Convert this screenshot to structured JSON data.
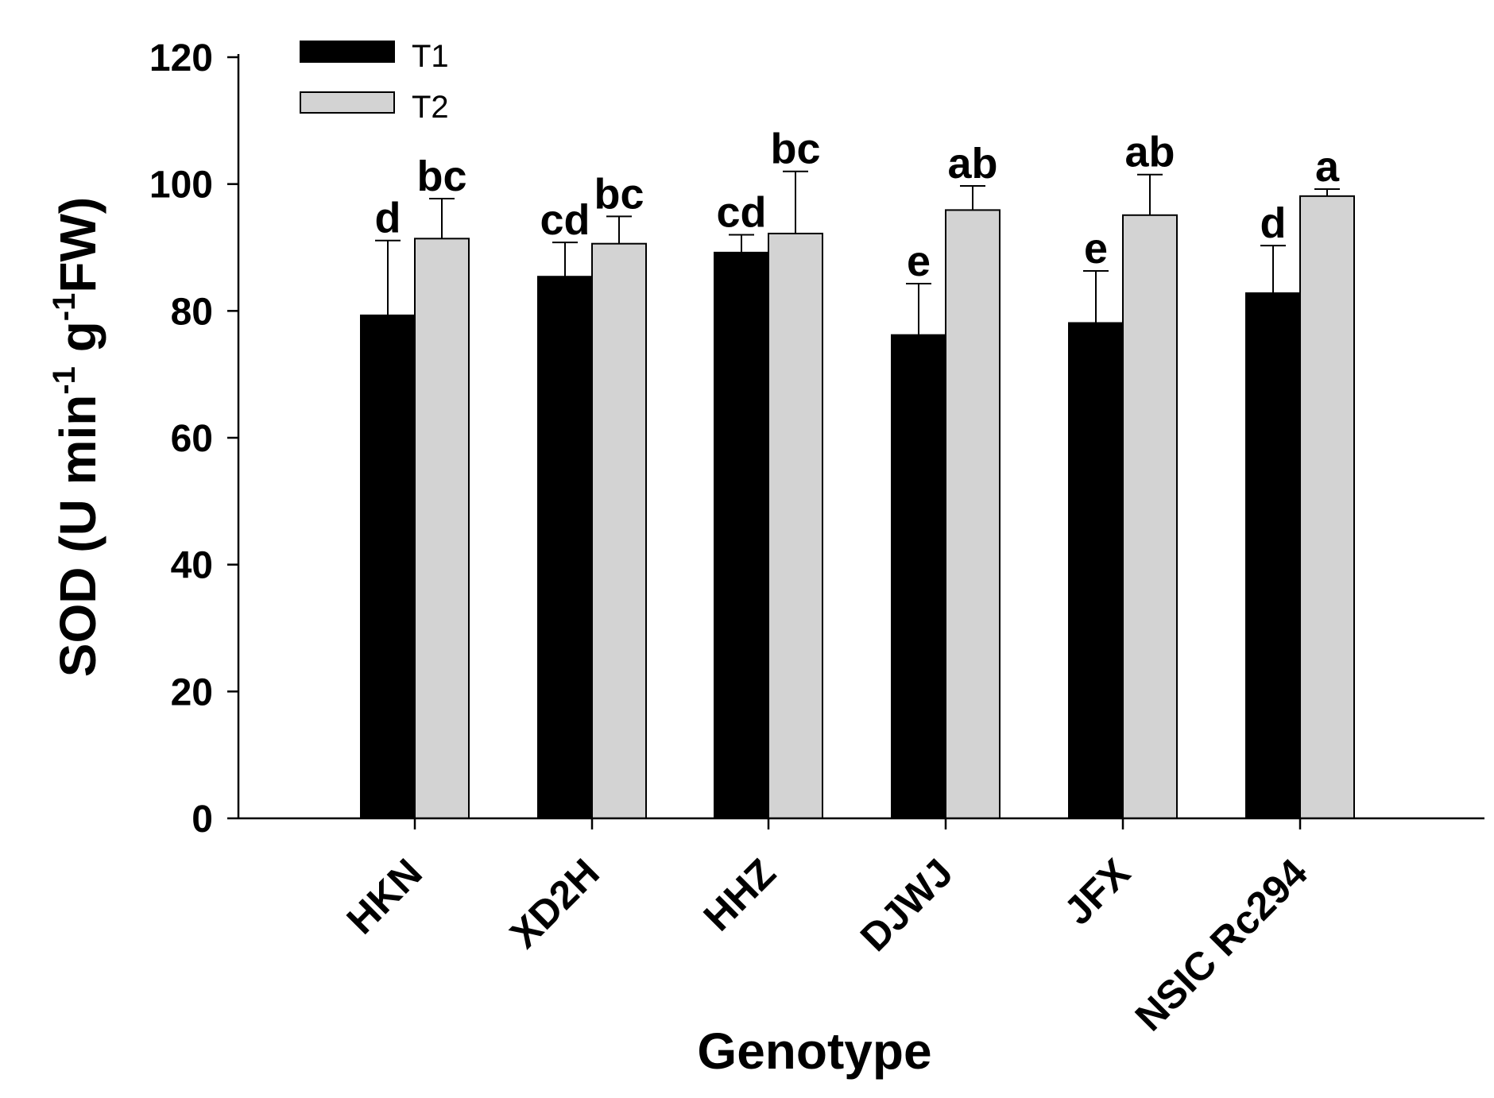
{
  "chart_data": {
    "type": "bar",
    "title": "",
    "xlabel": "Genotype",
    "ylabel": {
      "prefix": "SOD (U min",
      "sup1": "-1",
      "mid": " g",
      "sup2": "-1",
      "suffix": "FW)"
    },
    "ylim": [
      0,
      120
    ],
    "yticks": [
      "0",
      "20",
      "40",
      "60",
      "80",
      "100",
      "120"
    ],
    "categories": [
      "HKN",
      "XD2H",
      "HHZ",
      "DJWJ",
      "JFX",
      "NSIC Rc294"
    ],
    "series": [
      {
        "name": "T1",
        "color": "#000000",
        "values": [
          79.3,
          85.4,
          89.2,
          76.2,
          78.1,
          82.8
        ],
        "errors": [
          11.8,
          5.4,
          2.8,
          8.1,
          8.2,
          7.5
        ],
        "letters": [
          "d",
          "cd",
          "cd",
          "e",
          "e",
          "d"
        ]
      },
      {
        "name": "T2",
        "color": "#d3d3d3",
        "values": [
          91.4,
          90.6,
          92.2,
          95.9,
          95.1,
          98.1
        ],
        "errors": [
          6.3,
          4.3,
          9.8,
          3.8,
          6.4,
          1.1
        ],
        "letters": [
          "bc",
          "bc",
          "bc",
          "ab",
          "ab",
          "a"
        ]
      }
    ],
    "legend": {
      "position": "top-left",
      "entries": [
        "T1",
        "T2"
      ]
    }
  }
}
